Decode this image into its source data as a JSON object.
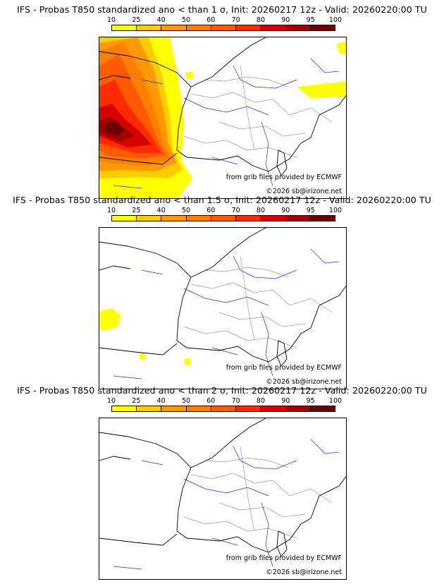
{
  "colors": {
    "c10": "#ffff00",
    "c25": "#ffcc00",
    "c40": "#ff9900",
    "c50": "#ff7f00",
    "c60": "#ff5a00",
    "c70": "#ff2a00",
    "c80": "#d50000",
    "c90": "#a00000",
    "c95": "#6b0000",
    "rivers": "#2a2ae0",
    "borders": "#9a9a9a",
    "coast": "#000000"
  },
  "scale_ticks": [
    "10",
    "25",
    "40",
    "50",
    "60",
    "70",
    "80",
    "90",
    "95",
    "100"
  ],
  "panels": [
    {
      "title": "IFS - Probas T850  standardized ano < than 1 σ, Init: 20260217 12z - Valid: 20260220:00 TU",
      "credit_source": "from grib files provided by ECMWF",
      "credit_copyright": "©2026 sb@irizone.net"
    },
    {
      "title": "IFS - Probas T850  standardized ano < than 1.5 σ, Init: 20260217 12z - Valid: 20260220:00 TU",
      "credit_source": "from grib files provided by ECMWF",
      "credit_copyright": "©2026 sb@irizone.net"
    },
    {
      "title": "IFS - Probas T850  standardized ano < than 2 σ, Init: 20260217 12z - Valid: 20260220:00 TU",
      "credit_source": "from grib files provided by ECMWF",
      "credit_copyright": "©2026 sb@irizone.net"
    }
  ]
}
